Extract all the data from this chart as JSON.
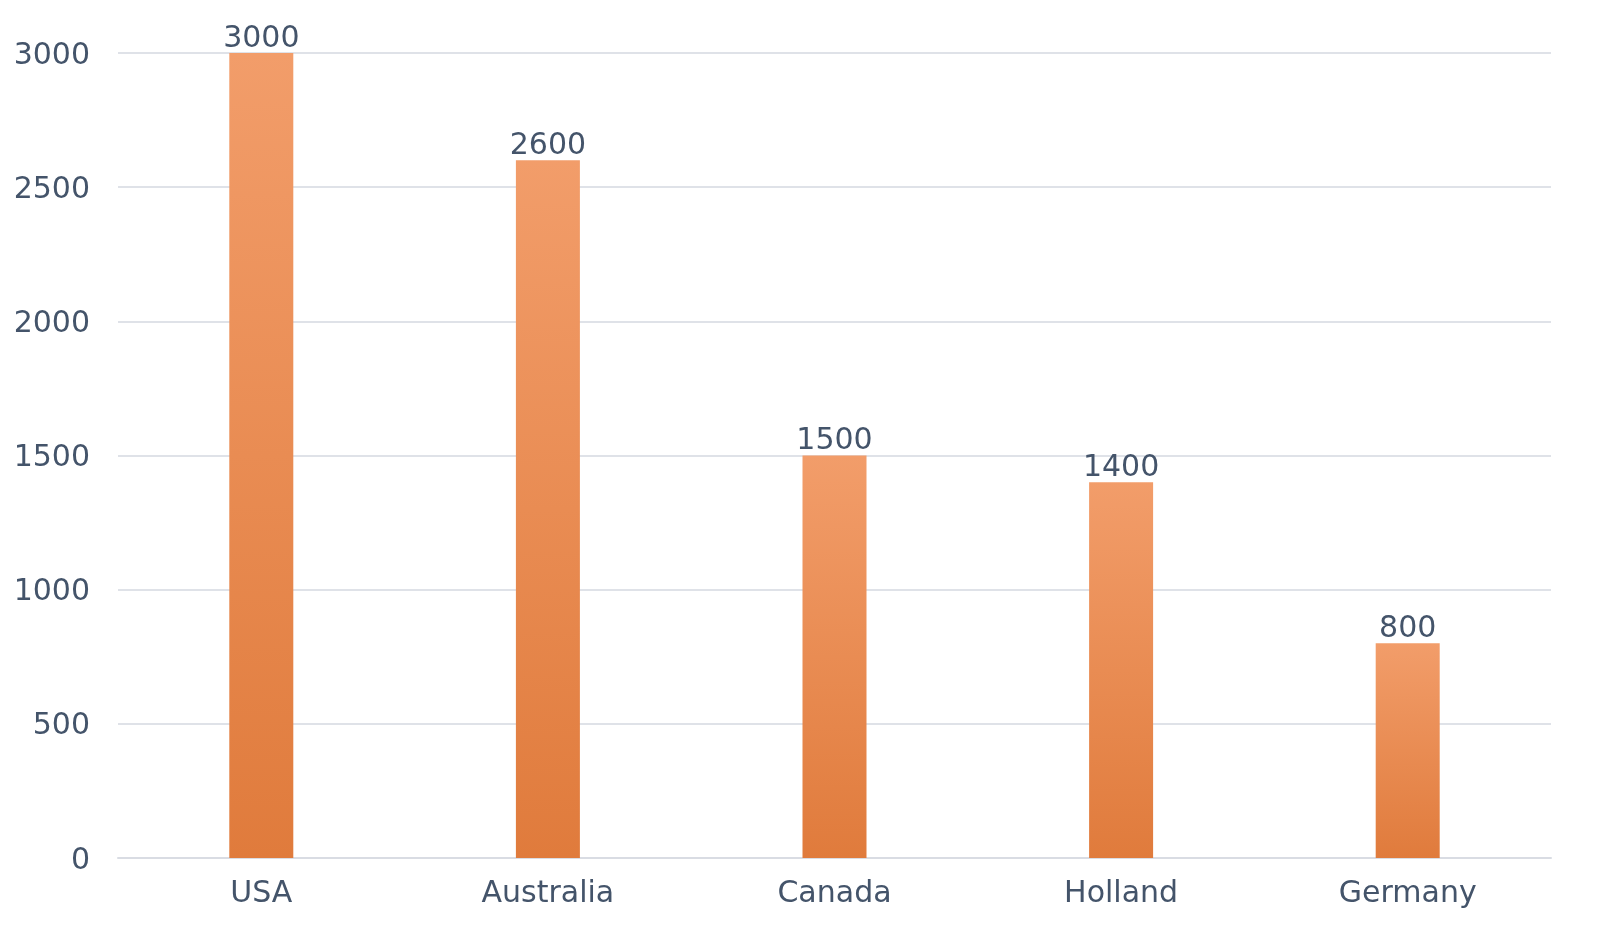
{
  "chart_data": {
    "type": "bar",
    "categories": [
      "USA",
      "Australia",
      "Canada",
      "Holland",
      "Germany"
    ],
    "values": [
      3000,
      2600,
      1500,
      1400,
      800
    ],
    "color": "#e07b3c",
    "ylim": [
      0,
      3000
    ],
    "yticks": [
      0,
      500,
      1000,
      1500,
      2000,
      2500,
      3000
    ],
    "grid": "y",
    "data_labels": true
  }
}
